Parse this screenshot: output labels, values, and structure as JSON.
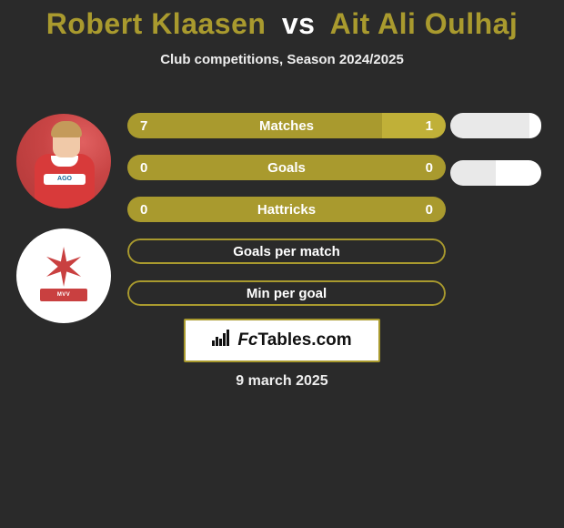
{
  "colors": {
    "background": "#2a2a2a",
    "title_p1": "#a99a2e",
    "title_vs": "#ffffff",
    "title_p2": "#a99a2e",
    "subtitle": "#eeeeee",
    "bar_p1": "#a99a2e",
    "bar_p2": "#c0b038",
    "bar_neutral": "#a99a2e",
    "bar_outline": "#a99a2e",
    "bar_track": "#a99a2e",
    "pill_p1": "#e9e9e9",
    "pill_p2": "#ffffff",
    "logo_border": "#a99a2e"
  },
  "title": {
    "p1": "Robert Klaasen",
    "vs": "vs",
    "p2": "Ait Ali Oulhaj"
  },
  "subtitle": "Club competitions, Season 2024/2025",
  "player1": {
    "sponsor": "AGO"
  },
  "player2": {
    "badge": "MVV MAASTRICHT"
  },
  "bars": [
    {
      "label": "Matches",
      "val_left": "7",
      "val_right": "1",
      "split_pct": 80,
      "show_vals": true,
      "show_pill": true,
      "pill_split_pct": 87
    },
    {
      "label": "Goals",
      "val_left": "0",
      "val_right": "0",
      "split_pct": 100,
      "show_vals": true,
      "show_pill": true,
      "pill_split_pct": 50
    },
    {
      "label": "Hattricks",
      "val_left": "0",
      "val_right": "0",
      "split_pct": 100,
      "show_vals": true,
      "show_pill": false,
      "pill_split_pct": 50
    },
    {
      "label": "Goals per match",
      "val_left": "",
      "val_right": "",
      "split_pct": 100,
      "show_vals": false,
      "show_pill": false,
      "pill_split_pct": 50
    },
    {
      "label": "Min per goal",
      "val_left": "",
      "val_right": "",
      "split_pct": 100,
      "show_vals": false,
      "show_pill": false,
      "pill_split_pct": 50
    }
  ],
  "bar_style": {
    "height": 28,
    "gap": 18,
    "radius": 14,
    "val_only_rows_outline_width": 2
  },
  "logo": {
    "brand_prefix": "Fc",
    "brand_suffix": "Tables.com"
  },
  "date": "9 march 2025"
}
